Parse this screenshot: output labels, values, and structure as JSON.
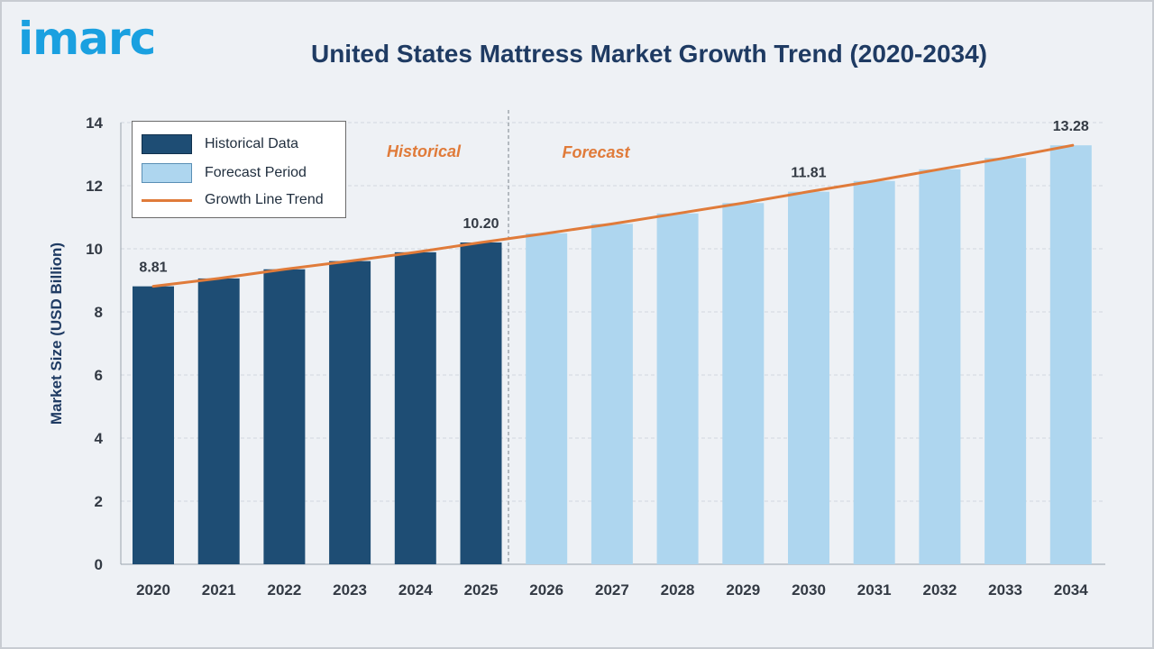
{
  "logo": "imarc",
  "title": "United States Mattress Market Growth Trend (2020-2034)",
  "colors": {
    "historical": "#1e4d74",
    "forecast": "#aed6ef",
    "trend": "#e07b3a",
    "annotation": "#e07b3a",
    "axis_text": "#1f3b63"
  },
  "legend": {
    "historical": "Historical Data",
    "forecast": "Forecast Period",
    "trend": "Growth Line Trend"
  },
  "annotations": {
    "historical": "Historical",
    "forecast": "Forecast"
  },
  "chart_data": {
    "type": "bar",
    "title": "United States Mattress Market Growth Trend (2020-2034)",
    "xlabel": "",
    "ylabel": "Market Size (USD Billion)",
    "ylim": [
      0,
      14
    ],
    "yticks": [
      0,
      2,
      4,
      6,
      8,
      10,
      12,
      14
    ],
    "categories": [
      "2020",
      "2021",
      "2022",
      "2023",
      "2024",
      "2025",
      "2026",
      "2027",
      "2028",
      "2029",
      "2030",
      "2031",
      "2032",
      "2033",
      "2034"
    ],
    "series": [
      {
        "name": "Historical Data",
        "values": [
          8.81,
          9.06,
          9.35,
          9.61,
          9.89,
          10.2,
          null,
          null,
          null,
          null,
          null,
          null,
          null,
          null,
          null
        ]
      },
      {
        "name": "Forecast Period",
        "values": [
          null,
          null,
          null,
          null,
          null,
          null,
          10.49,
          10.79,
          11.12,
          11.45,
          11.81,
          12.15,
          12.52,
          12.88,
          13.28
        ]
      }
    ],
    "trend_line": {
      "name": "Growth Line Trend",
      "values": [
        8.81,
        9.06,
        9.35,
        9.61,
        9.89,
        10.2,
        10.49,
        10.79,
        11.12,
        11.45,
        11.81,
        12.15,
        12.52,
        12.88,
        13.28
      ]
    },
    "data_labels": [
      {
        "category": "2020",
        "text": "8.81"
      },
      {
        "category": "2025",
        "text": "10.20"
      },
      {
        "category": "2030",
        "text": "11.81"
      },
      {
        "category": "2034",
        "text": "13.28"
      }
    ],
    "grid": true,
    "legend_position": "top-left"
  }
}
